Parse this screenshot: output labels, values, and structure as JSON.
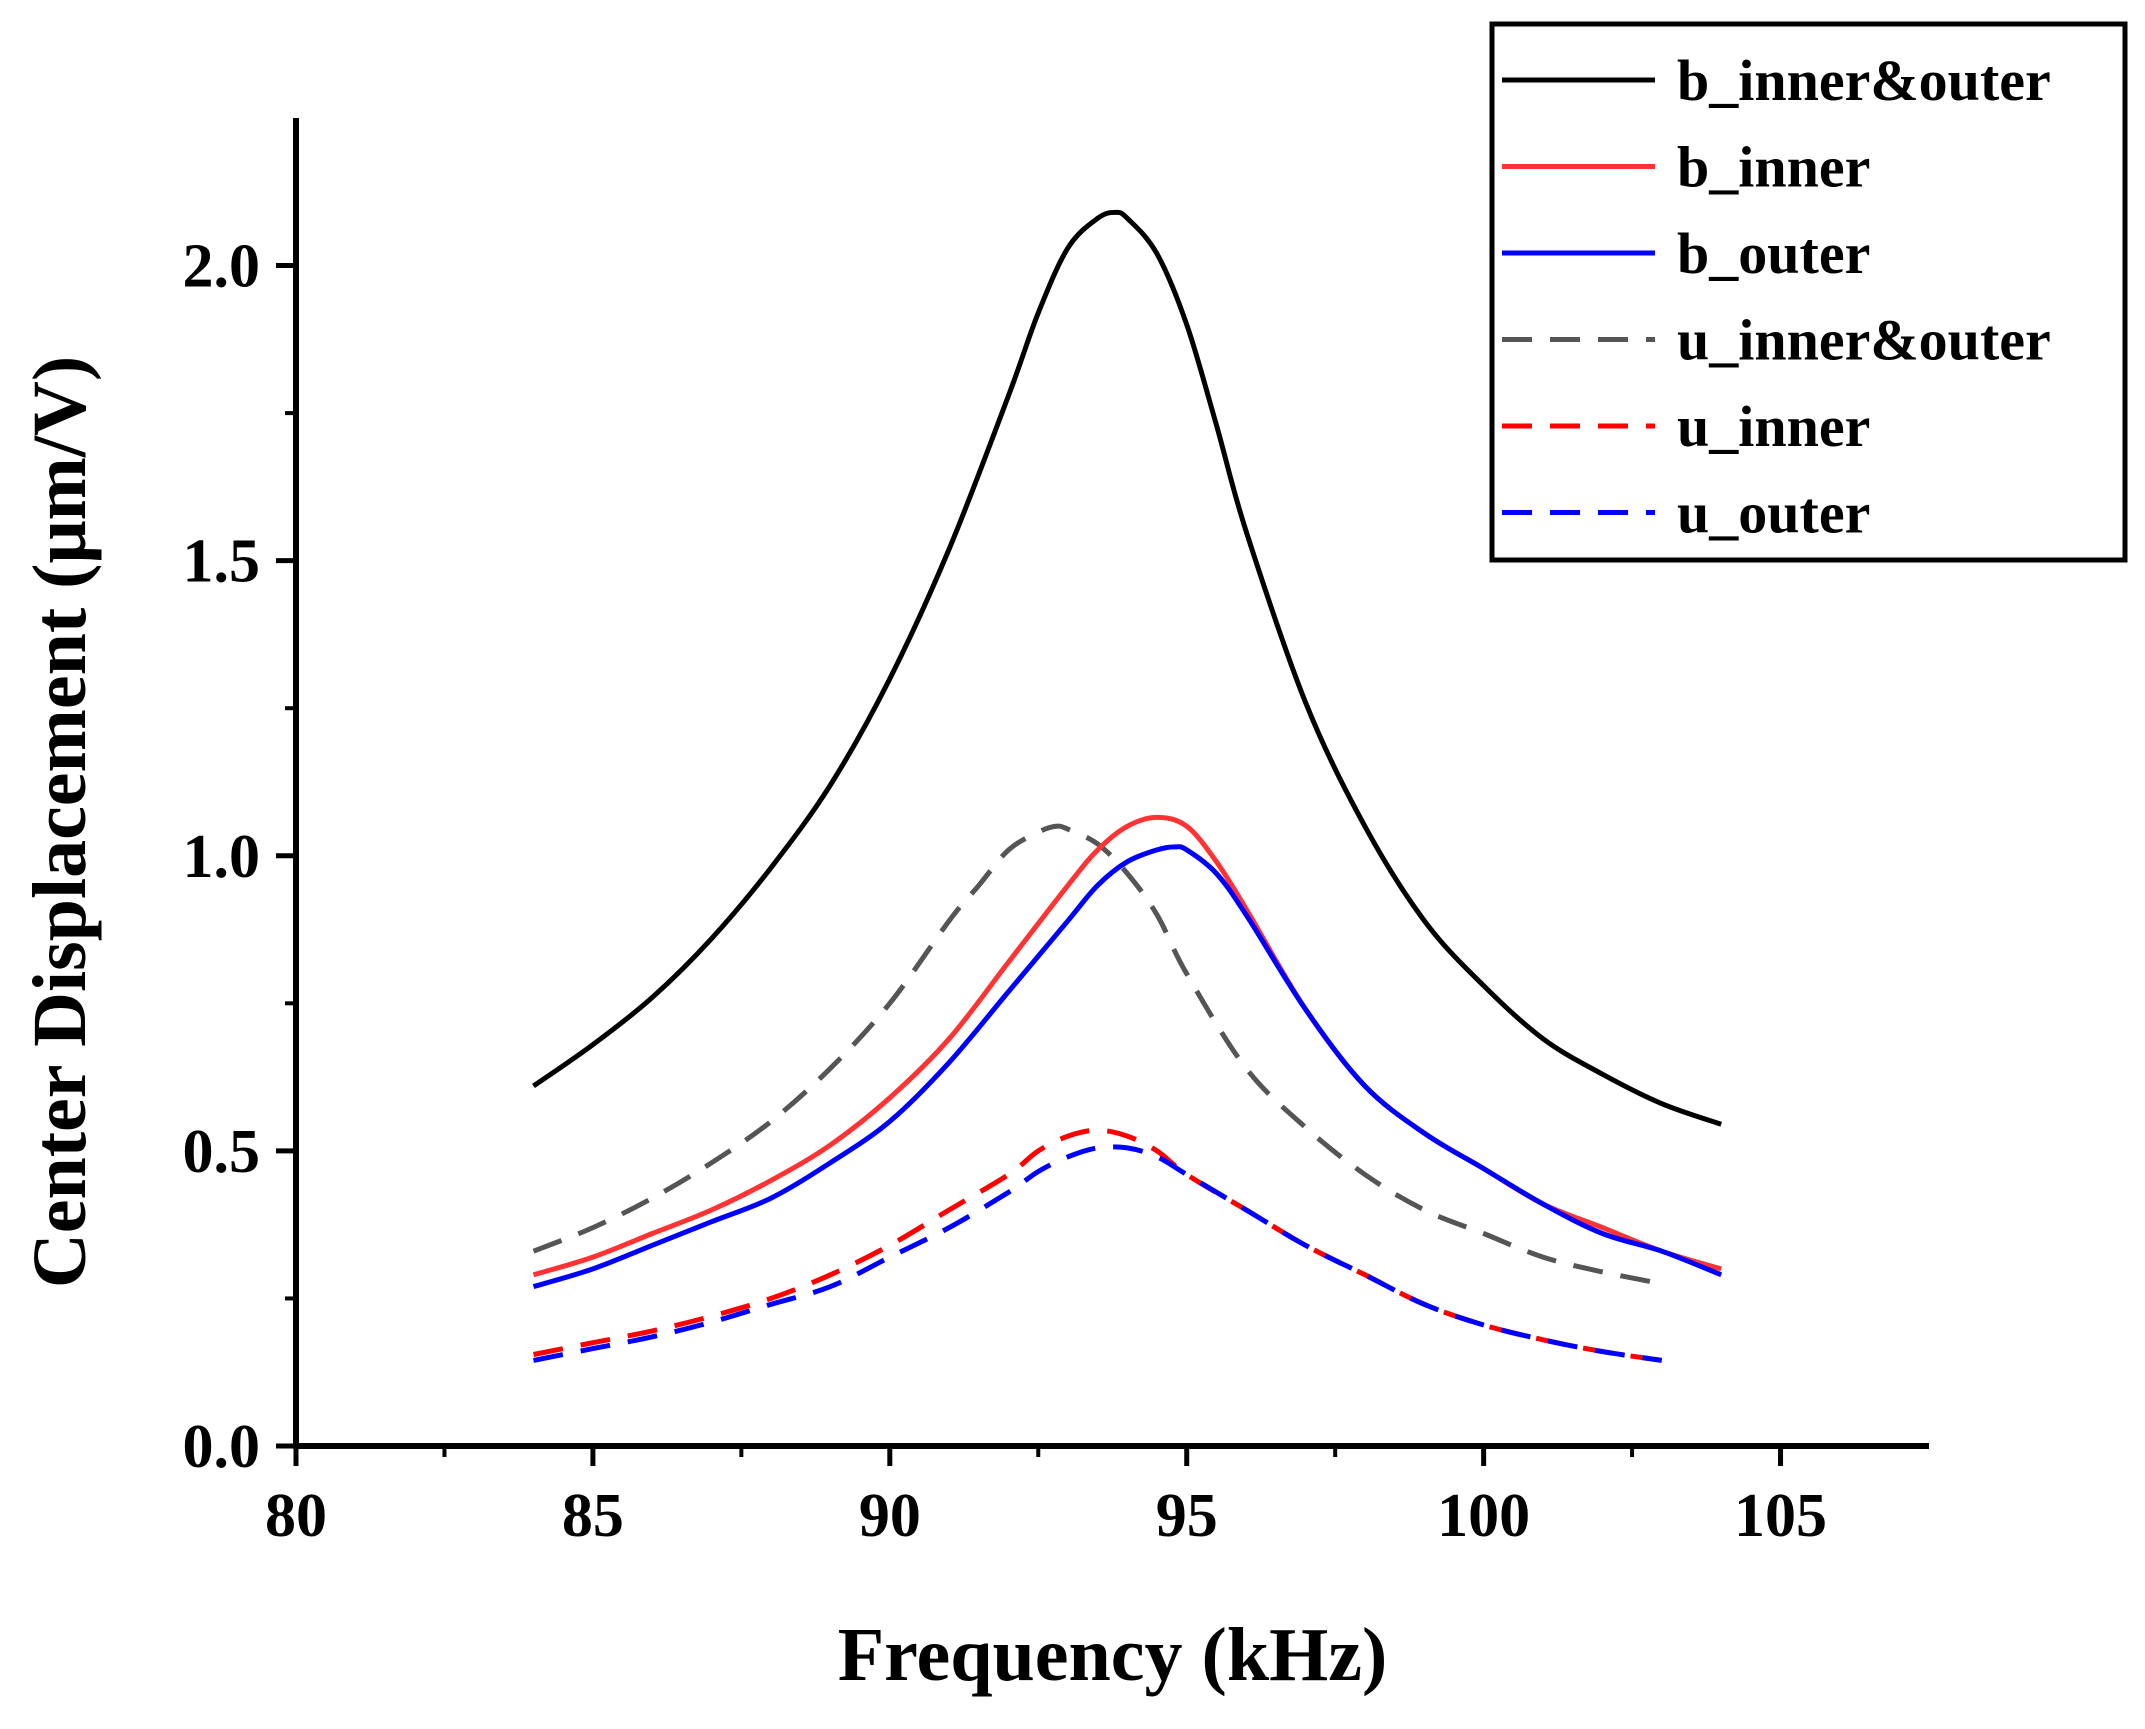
{
  "chart_data": {
    "type": "line",
    "title": "",
    "xlabel": "Frequency (kHz)",
    "ylabel": "Center Displacement (μm/V)",
    "xlim": [
      80,
      107.5
    ],
    "ylim": [
      0,
      2.25
    ],
    "xticks": [
      80,
      85,
      90,
      95,
      100,
      105
    ],
    "xtick_labels": [
      "80",
      "85",
      "90",
      "95",
      "100",
      "105"
    ],
    "yticks": [
      0,
      0.5,
      1.0,
      1.5,
      2.0
    ],
    "ytick_labels": [
      "0.0",
      "0.5",
      "1.0",
      "1.5",
      "2.0"
    ],
    "grid": false,
    "legend_position": "top-right",
    "series": [
      {
        "name": "b_inner&outer",
        "color": "#000000",
        "dash": "solid",
        "x": [
          84,
          85,
          86,
          87,
          88,
          89,
          90,
          91,
          92,
          92.5,
          93,
          93.5,
          93.8,
          94,
          94.5,
          95,
          95.5,
          96,
          97,
          98,
          99,
          100,
          101,
          102,
          103,
          104
        ],
        "y": [
          0.61,
          0.68,
          0.76,
          0.86,
          0.98,
          1.12,
          1.3,
          1.52,
          1.78,
          1.92,
          2.03,
          2.08,
          2.09,
          2.08,
          2.02,
          1.9,
          1.73,
          1.55,
          1.26,
          1.05,
          0.89,
          0.78,
          0.69,
          0.63,
          0.58,
          0.545
        ]
      },
      {
        "name": "b_inner",
        "color": "#FF3333",
        "dash": "solid",
        "x": [
          84,
          85,
          86,
          87,
          88,
          89,
          90,
          91,
          92,
          93,
          93.5,
          94,
          94.5,
          95,
          95.5,
          96,
          97,
          98,
          99,
          100,
          101,
          102,
          103,
          104
        ],
        "y": [
          0.29,
          0.32,
          0.36,
          0.4,
          0.45,
          0.51,
          0.59,
          0.69,
          0.82,
          0.95,
          1.01,
          1.05,
          1.065,
          1.05,
          0.99,
          0.91,
          0.74,
          0.61,
          0.53,
          0.47,
          0.41,
          0.37,
          0.33,
          0.3
        ]
      },
      {
        "name": "b_outer",
        "color": "#0000FF",
        "dash": "solid",
        "x": [
          84,
          85,
          86,
          87,
          88,
          89,
          90,
          91,
          92,
          93,
          93.5,
          94,
          94.5,
          94.8,
          95,
          95.5,
          96,
          97,
          98,
          99,
          100,
          101,
          102,
          103,
          104
        ],
        "y": [
          0.27,
          0.3,
          0.34,
          0.38,
          0.42,
          0.48,
          0.55,
          0.65,
          0.77,
          0.89,
          0.95,
          0.99,
          1.01,
          1.015,
          1.01,
          0.97,
          0.9,
          0.74,
          0.61,
          0.53,
          0.47,
          0.41,
          0.36,
          0.33,
          0.29
        ]
      },
      {
        "name": "u_inner&outer",
        "color": "#555555",
        "dash": "dashed",
        "x": [
          84,
          85,
          86,
          87,
          88,
          89,
          90,
          91,
          91.5,
          92,
          92.5,
          92.8,
          93,
          93.5,
          94,
          94.5,
          95,
          96,
          97,
          98,
          99,
          100,
          101,
          102,
          103
        ],
        "y": [
          0.33,
          0.37,
          0.42,
          0.48,
          0.55,
          0.64,
          0.75,
          0.89,
          0.95,
          1.01,
          1.04,
          1.05,
          1.045,
          1.02,
          0.97,
          0.9,
          0.8,
          0.64,
          0.54,
          0.46,
          0.4,
          0.36,
          0.32,
          0.295,
          0.275
        ]
      },
      {
        "name": "u_inner",
        "color": "#FF0000",
        "dash": "dashed",
        "x": [
          84,
          85,
          86,
          87,
          88,
          89,
          90,
          91,
          92,
          92.5,
          93,
          93.5,
          94,
          94.5,
          95,
          96,
          97,
          98,
          99,
          100,
          101,
          102,
          103
        ],
        "y": [
          0.155,
          0.175,
          0.195,
          0.22,
          0.25,
          0.29,
          0.34,
          0.4,
          0.46,
          0.5,
          0.525,
          0.535,
          0.525,
          0.5,
          0.46,
          0.4,
          0.34,
          0.29,
          0.24,
          0.205,
          0.18,
          0.16,
          0.145
        ]
      },
      {
        "name": "u_outer",
        "color": "#0000FF",
        "dash": "dashed",
        "x": [
          84,
          85,
          86,
          87,
          88,
          89,
          90,
          91,
          92,
          92.5,
          93,
          93.5,
          94,
          94.5,
          95,
          96,
          97,
          98,
          99,
          100,
          101,
          102,
          103
        ],
        "y": [
          0.145,
          0.165,
          0.185,
          0.21,
          0.24,
          0.27,
          0.32,
          0.37,
          0.43,
          0.465,
          0.49,
          0.505,
          0.505,
          0.49,
          0.46,
          0.4,
          0.34,
          0.29,
          0.24,
          0.205,
          0.18,
          0.16,
          0.145
        ]
      }
    ]
  }
}
